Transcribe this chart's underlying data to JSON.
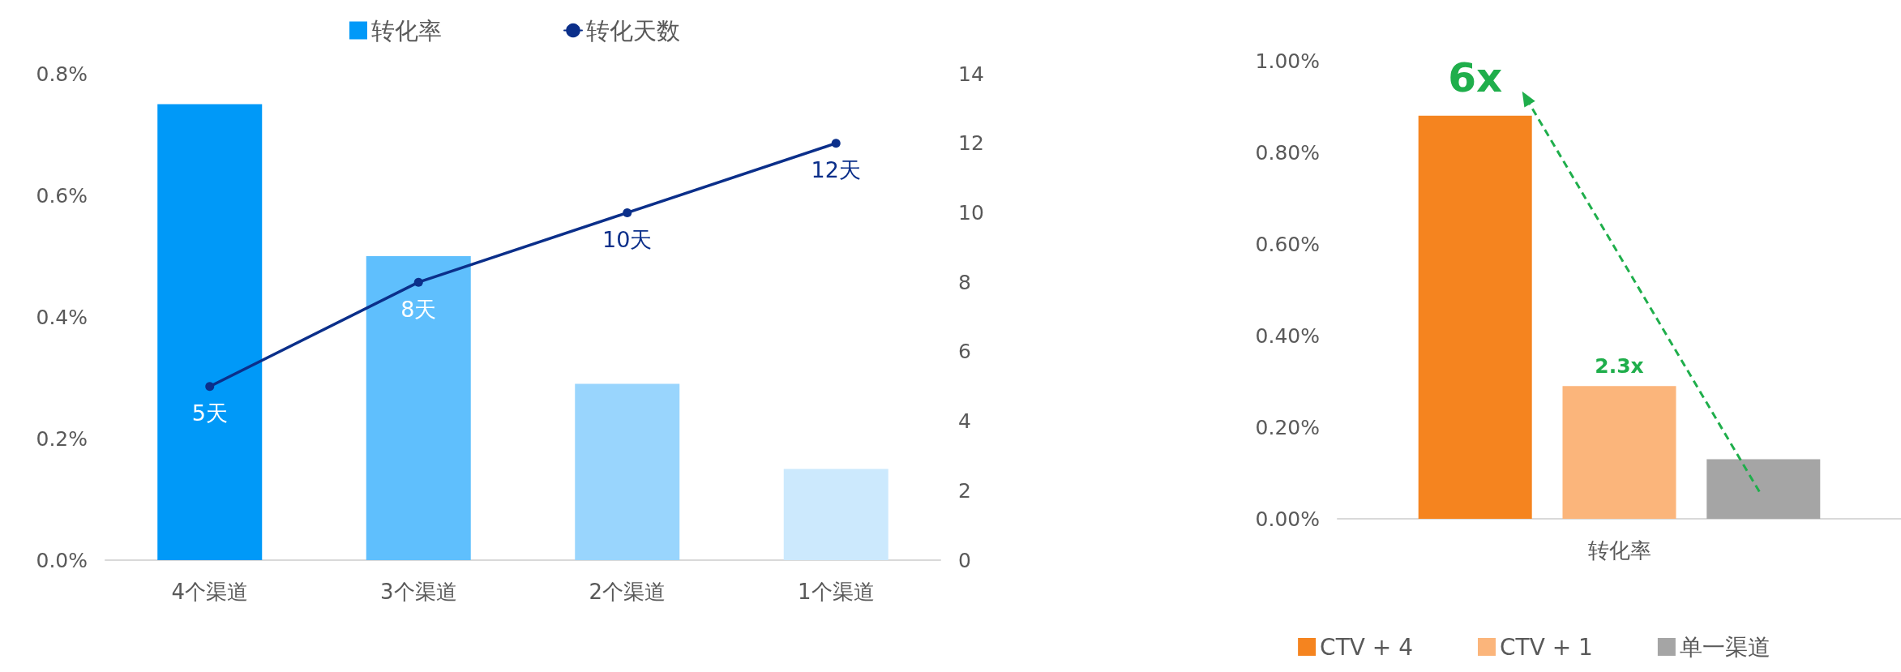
{
  "chart_data": [
    {
      "type": "bar",
      "categories": [
        "4个渠道",
        "3个渠道",
        "2个渠道",
        "1个渠道"
      ],
      "series": [
        {
          "name": "转化率",
          "type": "bar",
          "colors": [
            "#0099f8",
            "#5fbffd",
            "#99d5fd",
            "#cce9fd"
          ],
          "values": [
            0.75,
            0.5,
            0.29,
            0.15
          ]
        },
        {
          "name": "转化天数",
          "type": "line",
          "axis": "y2",
          "color": "#0b2f8a",
          "values": [
            5,
            8,
            10,
            12
          ],
          "value_labels": [
            "5天",
            "8天",
            "10天",
            "12天"
          ]
        }
      ],
      "ylim": [
        0,
        0.8
      ],
      "yticks": [
        {
          "value": 0,
          "label": "0.0%"
        },
        {
          "value": 0.2,
          "label": "0.2%"
        },
        {
          "value": 0.4,
          "label": "0.4%"
        },
        {
          "value": 0.6,
          "label": "0.6%"
        },
        {
          "value": 0.8,
          "label": "0.8%"
        }
      ],
      "y2lim": [
        0,
        14
      ],
      "y2ticks": [
        0,
        2,
        4,
        6,
        8,
        10,
        12,
        14
      ],
      "legend": "top",
      "grid": false,
      "marker": "circle"
    },
    {
      "type": "bar",
      "categories": [
        "转化率"
      ],
      "series": [
        {
          "name": "CTV + 4",
          "color": "#f5841f",
          "values": [
            0.88
          ]
        },
        {
          "name": "CTV + 1",
          "color": "#fbb57b",
          "values": [
            0.29
          ]
        },
        {
          "name": "单一渠道",
          "color": "#a5a5a5",
          "values": [
            0.13
          ]
        }
      ],
      "ylim": [
        0,
        1
      ],
      "yticks": [
        {
          "value": 0,
          "label": "0.00%"
        },
        {
          "value": 0.2,
          "label": "0.20%"
        },
        {
          "value": 0.4,
          "label": "0.40%"
        },
        {
          "value": 0.6,
          "label": "0.60%"
        },
        {
          "value": 0.8,
          "label": "0.80%"
        },
        {
          "value": 1,
          "label": "1.00%"
        }
      ],
      "legend": "bottom",
      "grid": false,
      "annotations": [
        "6x",
        "2.3x"
      ]
    }
  ]
}
